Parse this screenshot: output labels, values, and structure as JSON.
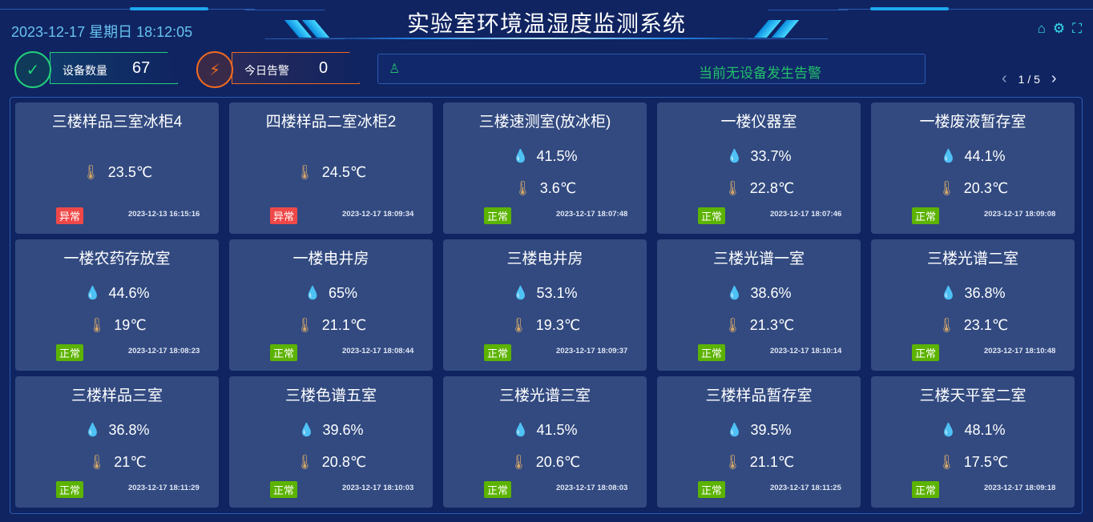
{
  "header": {
    "datetime": "2023-12-17 星期日 18:12:05",
    "title": "实验室环境温湿度监测系统",
    "icons": [
      "home-icon",
      "gear-icon",
      "fullscreen-icon"
    ]
  },
  "stats": {
    "devices": {
      "label": "设备数量",
      "value": "67",
      "color": "#22d07a"
    },
    "alarms": {
      "label": "今日告警",
      "value": "0",
      "color": "#f06a20"
    }
  },
  "alarm_bar": {
    "text": "当前无设备发生告警",
    "color": "#22c06a"
  },
  "pager": {
    "page": "1 / 5"
  },
  "status_colors": {
    "正常": "#5cb300",
    "异常": "#f04848"
  },
  "cards": [
    {
      "name": "三楼样品三室冰柜4",
      "humidity": null,
      "temperature": "23.5℃",
      "status": "异常",
      "time": "2023-12-13 16:15:16"
    },
    {
      "name": "四楼样品二室冰柜2",
      "humidity": null,
      "temperature": "24.5℃",
      "status": "异常",
      "time": "2023-12-17 18:09:34"
    },
    {
      "name": "三楼速测室(放冰柜)",
      "humidity": "41.5%",
      "temperature": "3.6℃",
      "status": "正常",
      "time": "2023-12-17 18:07:48"
    },
    {
      "name": "一楼仪器室",
      "humidity": "33.7%",
      "temperature": "22.8℃",
      "status": "正常",
      "time": "2023-12-17 18:07:46"
    },
    {
      "name": "一楼废液暂存室",
      "humidity": "44.1%",
      "temperature": "20.3℃",
      "status": "正常",
      "time": "2023-12-17 18:09:08"
    },
    {
      "name": "一楼农药存放室",
      "humidity": "44.6%",
      "temperature": "19℃",
      "status": "正常",
      "time": "2023-12-17 18:08:23"
    },
    {
      "name": "一楼电井房",
      "humidity": "65%",
      "temperature": "21.1℃",
      "status": "正常",
      "time": "2023-12-17 18:08:44"
    },
    {
      "name": "三楼电井房",
      "humidity": "53.1%",
      "temperature": "19.3℃",
      "status": "正常",
      "time": "2023-12-17 18:09:37"
    },
    {
      "name": "三楼光谱一室",
      "humidity": "38.6%",
      "temperature": "21.3℃",
      "status": "正常",
      "time": "2023-12-17 18:10:14"
    },
    {
      "name": "三楼光谱二室",
      "humidity": "36.8%",
      "temperature": "23.1℃",
      "status": "正常",
      "time": "2023-12-17 18:10:48"
    },
    {
      "name": "三楼样品三室",
      "humidity": "36.8%",
      "temperature": "21℃",
      "status": "正常",
      "time": "2023-12-17 18:11:29"
    },
    {
      "name": "三楼色谱五室",
      "humidity": "39.6%",
      "temperature": "20.8℃",
      "status": "正常",
      "time": "2023-12-17 18:10:03"
    },
    {
      "name": "三楼光谱三室",
      "humidity": "41.5%",
      "temperature": "20.6℃",
      "status": "正常",
      "time": "2023-12-17 18:08:03"
    },
    {
      "name": "三楼样品暂存室",
      "humidity": "39.5%",
      "temperature": "21.1℃",
      "status": "正常",
      "time": "2023-12-17 18:11:25"
    },
    {
      "name": "三楼天平室二室",
      "humidity": "48.1%",
      "temperature": "17.5℃",
      "status": "正常",
      "time": "2023-12-17 18:09:18"
    }
  ]
}
